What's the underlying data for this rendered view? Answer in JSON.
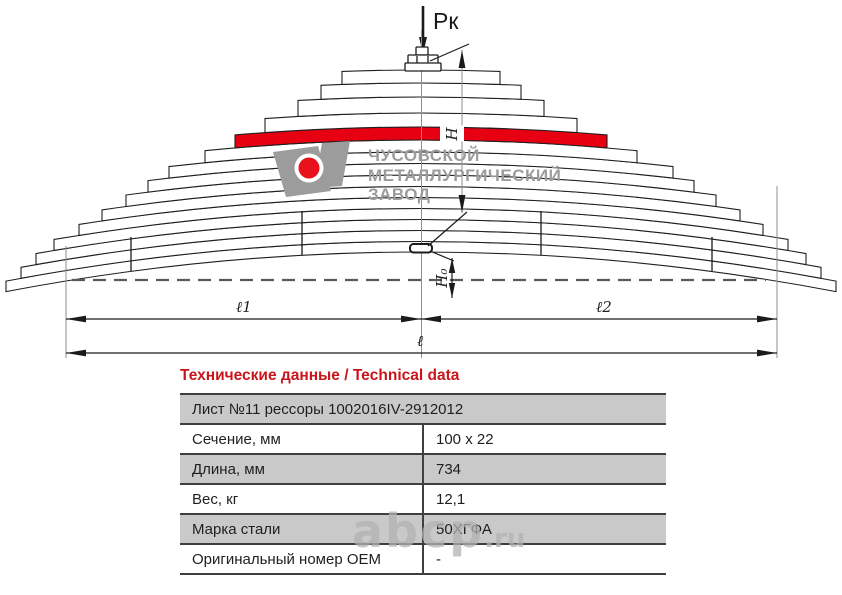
{
  "colors": {
    "highlight_red": "#e60012",
    "title_red": "#c8161c",
    "row_gray": "#c9c9c9",
    "logo_gray": "#9c9c9c"
  },
  "drawing": {
    "force_label": "Рк",
    "dim_h_label": "H",
    "dim_h0_label": "H₀",
    "dim_l1_label": "ℓ1",
    "dim_l2_label": "ℓ2",
    "dim_l_label": "ℓ"
  },
  "logo": {
    "line1": "ЧУСОВСКОЙ",
    "line2": "МЕТАЛЛУРГИЧЕСКИЙ",
    "line3": "ЗАВОД"
  },
  "watermark": {
    "text": "abcp",
    "suffix": ".ru"
  },
  "table": {
    "title": "Технические данные / Technical data",
    "header_row": "Лист №11 рессоры 1002016IV-2912012",
    "rows": [
      {
        "label": "Сечение, мм",
        "value": "100 x 22"
      },
      {
        "label": "Длина, мм",
        "value": "734"
      },
      {
        "label": "Вес, кг",
        "value": "12,1"
      },
      {
        "label": "Марка стали",
        "value": "50ХГФА"
      },
      {
        "label": "Оригинальный номер OEM",
        "value": "-"
      }
    ]
  }
}
